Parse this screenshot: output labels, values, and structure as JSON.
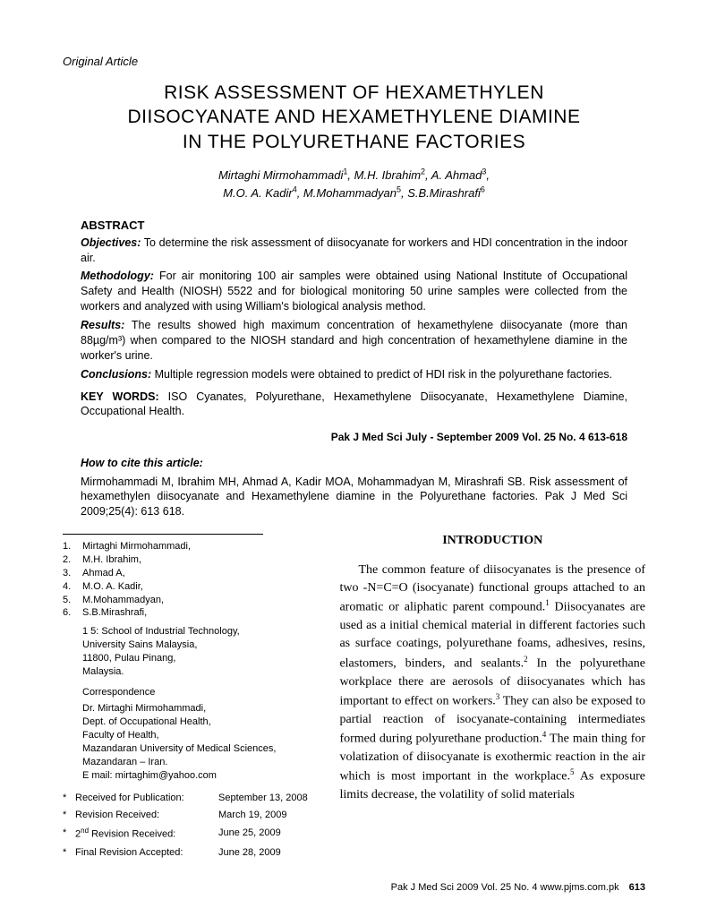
{
  "article_type": "Original Article",
  "title_line1": "RISK ASSESSMENT OF HEXAMETHYLEN",
  "title_line2": "DIISOCYANATE AND HEXAMETHYLENE DIAMINE",
  "title_line3": "IN THE POLYURETHANE FACTORIES",
  "authors_line1_html": "Mirtaghi Mirmohammadi<sup>1</sup>, M.H. Ibrahim<sup>2</sup>, A. Ahmad<sup>3</sup>,",
  "authors_line2_html": "M.O. A. Kadir<sup>4</sup>, M.Mohammadyan<sup>5</sup>, S.B.Mirashrafi<sup>6</sup>",
  "abstract": {
    "heading": "ABSTRACT",
    "objectives_label": "Objectives:",
    "objectives_text": " To determine the risk assessment of diisocyanate for workers and HDI concentration in the indoor air.",
    "methodology_label": "Methodology:",
    "methodology_text": " For air monitoring 100 air samples were obtained using National Institute of Occupational Safety and Health (NIOSH) 5522 and for biological monitoring 50 urine samples were collected from the workers and analyzed with using William's biological analysis method.",
    "results_label": "Results:",
    "results_text": " The results showed high maximum concentration of hexamethylene diisocyanate (more than 88µg/m³) when compared to the NIOSH standard and high concentration of hexamethylene diamine in the worker's urine.",
    "conclusions_label": "Conclusions:",
    "conclusions_text": " Multiple regression models were obtained to predict of HDI risk in the polyurethane factories.",
    "keywords_label": "KEY WORDS:",
    "keywords_text": " ISO Cyanates, Polyurethane, Hexamethylene Diisocyanate, Hexamethylene Diamine, Occupational Health."
  },
  "journal_ref_top": "Pak J Med Sci   July - September 2009   Vol. 25   No. 4   613-618",
  "cite": {
    "heading": "How to cite this article:",
    "text": "Mirmohammadi M, Ibrahim MH, Ahmad A, Kadir MOA, Mohammadyan M, Mirashrafi SB. Risk assessment of hexamethylen diisocyanate and Hexamethylene diamine in the Polyurethane factories. Pak J Med Sci 2009;25(4): 613 618."
  },
  "affiliations": [
    {
      "num": "1.",
      "name": "Mirtaghi Mirmohammadi,"
    },
    {
      "num": "2.",
      "name": "M.H. Ibrahim,"
    },
    {
      "num": "3.",
      "name": "Ahmad A,"
    },
    {
      "num": "4.",
      "name": "M.O. A. Kadir,"
    },
    {
      "num": "5.",
      "name": "M.Mohammadyan,"
    },
    {
      "num": "6.",
      "name": "S.B.Mirashrafi,"
    }
  ],
  "institution_line1": "1 5: School of Industrial Technology,",
  "institution_line2": "University Sains Malaysia,",
  "institution_line3": "11800, Pulau Pinang,",
  "institution_line4": "Malaysia.",
  "correspondence_heading": "Correspondence",
  "correspondence_lines": [
    "Dr. Mirtaghi Mirmohammadi,",
    "Dept. of Occupational Health,",
    "Faculty of Health,",
    "Mazandaran University of Medical Sciences,",
    "Mazandaran – Iran.",
    "E mail: mirtaghim@yahoo.com"
  ],
  "dates": [
    {
      "label": "Received for Publication:",
      "value": "September 13, 2008"
    },
    {
      "label": "Revision Received:",
      "value": "March 19, 2009"
    },
    {
      "label_html": "2<sup>nd</sup> Revision Received:",
      "value": "June 25, 2009"
    },
    {
      "label": "Final Revision Accepted:",
      "value": "June 28, 2009"
    }
  ],
  "intro_heading": "INTRODUCTION",
  "intro_html": "The common feature of diisocyanates is the presence of two -N=C=O (isocyanate) functional groups attached to an aromatic or aliphatic parent compound.<sup>1</sup> Diisocyanates are used as a initial chemical material in different factories such as surface coatings, polyurethane foams, adhesives, resins, elastomers, binders, and sealants.<sup>2</sup> In the polyurethane workplace there are aerosols of diisocyanates which has important to effect on workers.<sup>3</sup> They can also be exposed to partial reaction of isocyanate-containing intermediates formed during polyurethane production.<sup>4</sup> The main thing for volatization of diisocyanate is exothermic reaction in the air which is most important in the workplace.<sup>5</sup> As exposure limits decrease, the volatility of solid materials",
  "footer_text": "Pak J Med Sci   2009   Vol. 25   No. 4   www.pjms.com.pk",
  "footer_page": "613"
}
